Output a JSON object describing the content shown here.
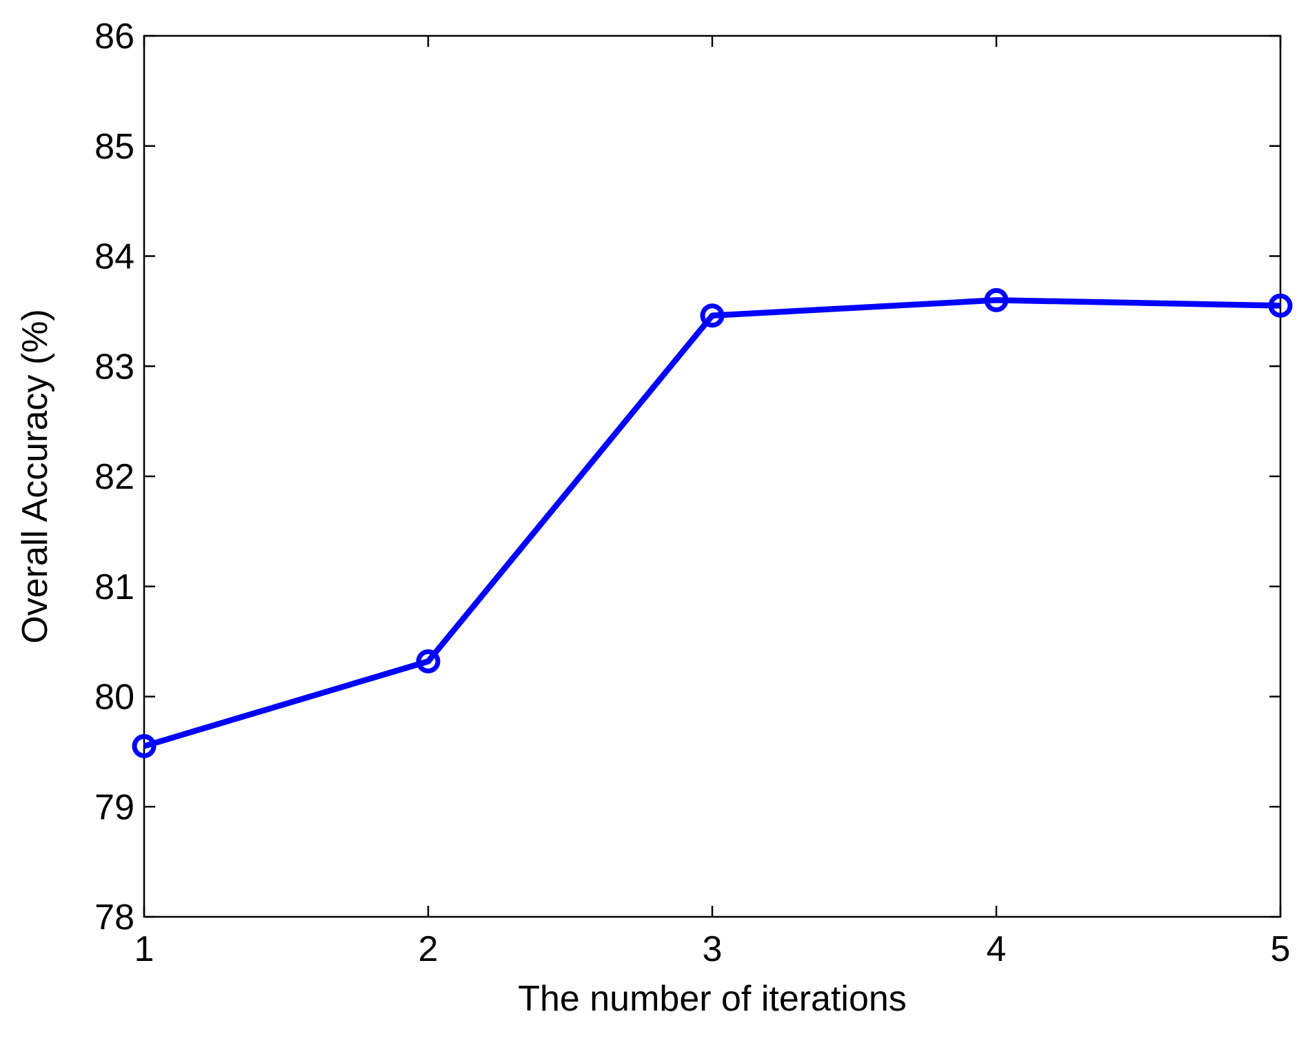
{
  "chart_data": {
    "type": "line",
    "x_label": "The number of iterations",
    "y_label": "Overall Accuracy (%)",
    "x": [
      1,
      2,
      3,
      4,
      5
    ],
    "series": [
      {
        "color": "#0000ff",
        "values": [
          79.55,
          80.32,
          83.46,
          83.6,
          83.55
        ]
      }
    ],
    "xlim": [
      1,
      5
    ],
    "xticks": [
      1,
      2,
      3,
      4,
      5
    ],
    "ylim": [
      78,
      86
    ],
    "yticks": [
      78,
      79,
      80,
      81,
      82,
      83,
      84,
      85,
      86
    ],
    "marker": "circle",
    "grid": false
  }
}
